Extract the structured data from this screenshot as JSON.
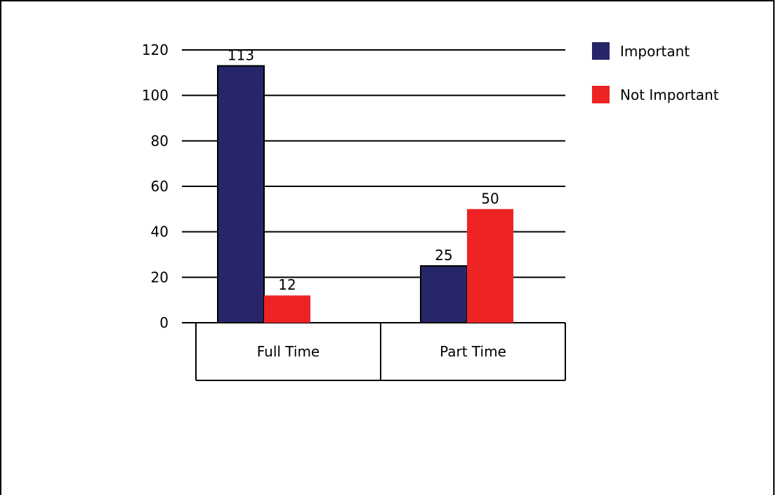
{
  "chart_data": {
    "type": "bar",
    "categories": [
      "Full Time",
      "Part Time"
    ],
    "series": [
      {
        "name": "Important",
        "values": [
          113,
          25
        ],
        "color": "#262669"
      },
      {
        "name": "Not Important",
        "values": [
          12,
          50
        ],
        "color": "#ee2424"
      }
    ],
    "data_labels": [
      [
        "113",
        "25"
      ],
      [
        "12",
        "50"
      ]
    ],
    "yticks": [
      "0",
      "20",
      "40",
      "60",
      "80",
      "100",
      "120"
    ],
    "ylim": [
      0,
      120
    ],
    "title": "",
    "xlabel": "",
    "ylabel": "",
    "grid": true,
    "legend_position": "top-right"
  }
}
